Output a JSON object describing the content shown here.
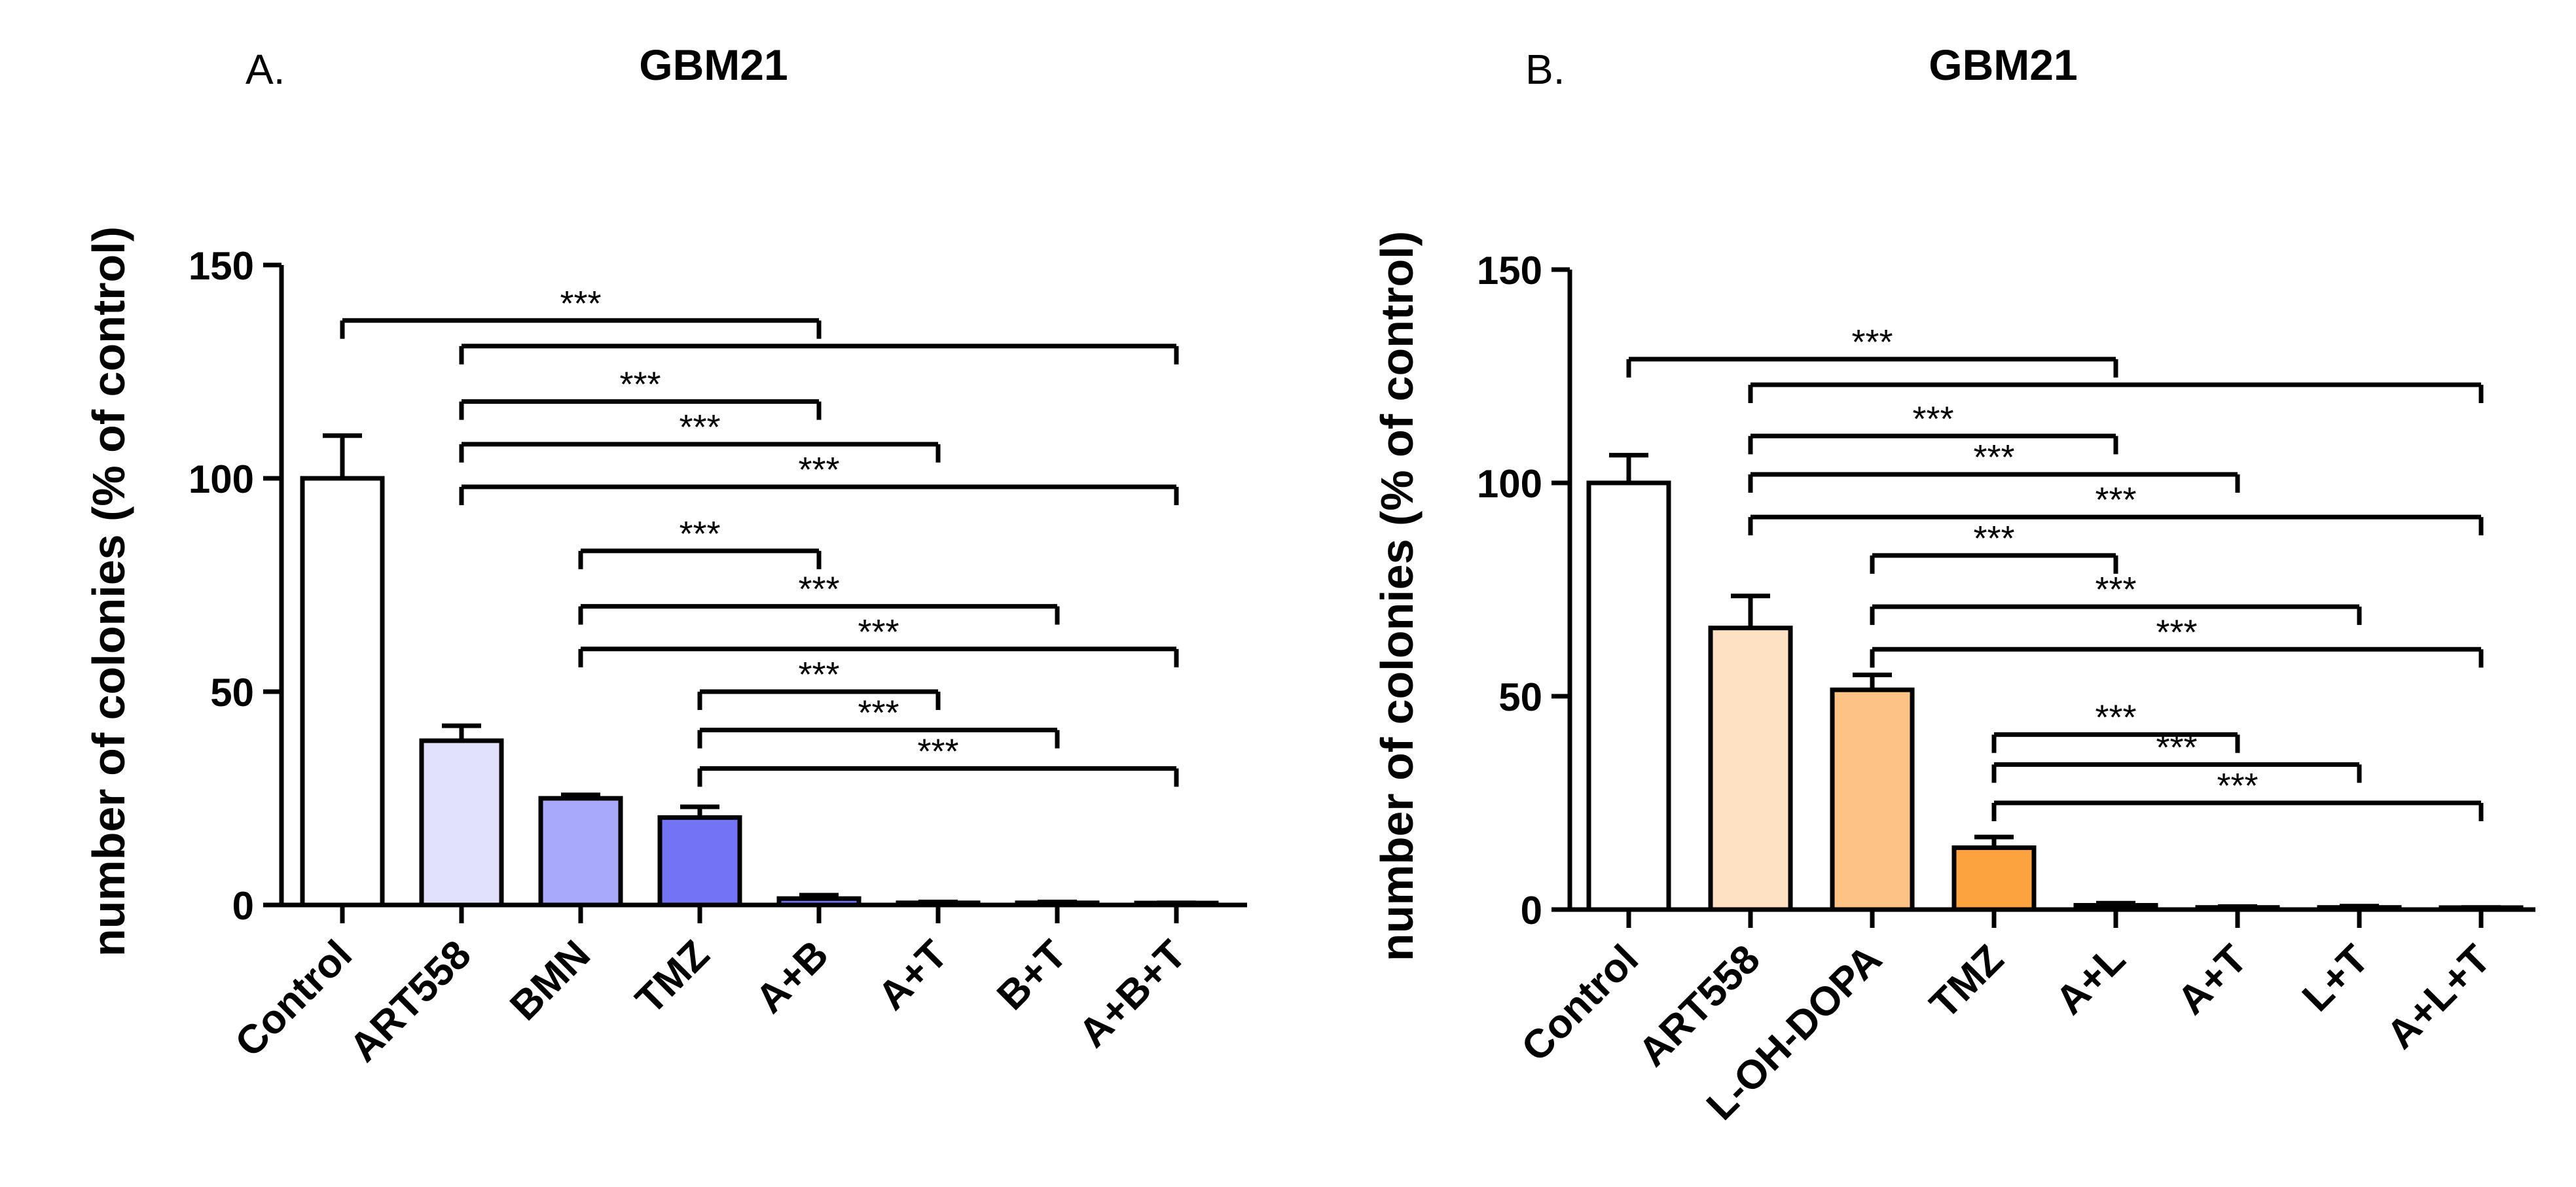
{
  "chart_data": [
    {
      "type": "bar",
      "panel_label": "A.",
      "title": "GBM21",
      "ylabel": "number of colonies (% of control)",
      "ylim": [
        0,
        150
      ],
      "yticks": [
        0,
        50,
        100,
        150
      ],
      "categories": [
        "Control",
        "ART558",
        "BMN",
        "TMZ",
        "A+B",
        "A+T",
        "B+T",
        "A+B+T"
      ],
      "values": [
        100,
        38.5,
        25,
        20.5,
        1.5,
        0.5,
        0.5,
        0.3
      ],
      "errors": [
        10,
        3.5,
        0.8,
        2.5,
        0.8,
        0.2,
        0.2,
        0.2
      ],
      "colors": [
        "#ffffff",
        "#e1e1fb",
        "#a9a9f9",
        "#7373f6",
        "#7373f6",
        "#7373f6",
        "#7373f6",
        "#7373f6"
      ],
      "significance": [
        {
          "from": 0,
          "to": [
            4
          ],
          "y": 137,
          "label": "***"
        },
        {
          "from": 1,
          "to": [
            7
          ],
          "y": 131,
          "label": ""
        },
        {
          "from": 1,
          "to": [
            4
          ],
          "y": 118,
          "label": "***"
        },
        {
          "from": 1,
          "to": [
            5
          ],
          "y": 108,
          "label": "***"
        },
        {
          "from": 1,
          "to": [
            7
          ],
          "y": 98,
          "label": "***"
        },
        {
          "from": 2,
          "to": [
            4
          ],
          "y": 83,
          "label": "***"
        },
        {
          "from": 2,
          "to": [
            6
          ],
          "y": 70,
          "label": "***"
        },
        {
          "from": 2,
          "to": [
            7
          ],
          "y": 60,
          "label": "***"
        },
        {
          "from": 3,
          "to": [
            5
          ],
          "y": 50,
          "label": "***"
        },
        {
          "from": 3,
          "to": [
            6
          ],
          "y": 41,
          "label": "***"
        },
        {
          "from": 3,
          "to": [
            7
          ],
          "y": 32,
          "label": "***"
        }
      ]
    },
    {
      "type": "bar",
      "panel_label": "B.",
      "title": "GBM21",
      "ylabel": "number of colonies (% of control)",
      "ylim": [
        0,
        150
      ],
      "yticks": [
        0,
        50,
        100,
        150
      ],
      "categories": [
        "Control",
        "ART558",
        "L-OH-DOPA",
        "TMZ",
        "A+L",
        "A+T",
        "L+T",
        "A+L+T"
      ],
      "values": [
        100,
        66,
        51.5,
        14.5,
        1,
        0.5,
        0.5,
        0.3
      ],
      "errors": [
        6.5,
        7.5,
        3.5,
        2.5,
        0.5,
        0.2,
        0.3,
        0.2
      ],
      "colors": [
        "#ffffff",
        "#fde1c2",
        "#fcc385",
        "#fca23e",
        "#fca23e",
        "#fca23e",
        "#fca23e",
        "#fca23e"
      ],
      "significance": [
        {
          "from": 0,
          "to": [
            4
          ],
          "y": 129,
          "label": "***"
        },
        {
          "from": 1,
          "to": [
            7
          ],
          "y": 123,
          "label": ""
        },
        {
          "from": 1,
          "to": [
            4
          ],
          "y": 111,
          "label": "***"
        },
        {
          "from": 1,
          "to": [
            5
          ],
          "y": 102,
          "label": "***"
        },
        {
          "from": 1,
          "to": [
            7
          ],
          "y": 92,
          "label": "***"
        },
        {
          "from": 2,
          "to": [
            4
          ],
          "y": 83,
          "label": "***"
        },
        {
          "from": 2,
          "to": [
            6
          ],
          "y": 71,
          "label": "***"
        },
        {
          "from": 2,
          "to": [
            7
          ],
          "y": 61,
          "label": "***"
        },
        {
          "from": 3,
          "to": [
            5
          ],
          "y": 41,
          "label": "***"
        },
        {
          "from": 3,
          "to": [
            6
          ],
          "y": 34,
          "label": "***"
        },
        {
          "from": 3,
          "to": [
            7
          ],
          "y": 25,
          "label": "***"
        }
      ]
    }
  ]
}
